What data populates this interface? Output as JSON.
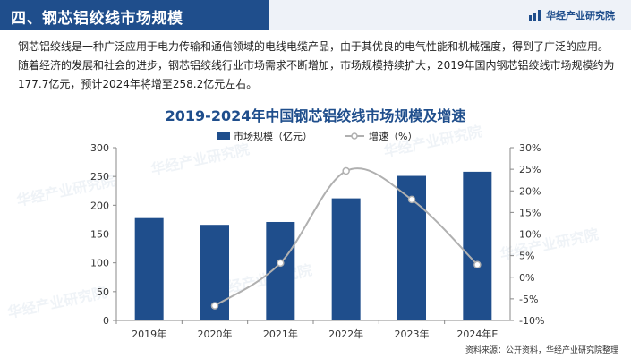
{
  "header": {
    "title": "四、钢芯铝绞线市场规模",
    "brand": "华经产业研究院"
  },
  "intro_text": "钢芯铝绞线是一种广泛应用于电力传输和通信领域的电线电缆产品，由于其优良的电气性能和机械强度，得到了广泛的应用。随着经济的发展和社会的进步，钢芯铝绞线行业市场需求不断增加，市场规模持续扩大，2019年国内钢芯铝绞线市场规模约为177.7亿元，预计2024年将增至258.2亿元左右。",
  "source": "资料来源：公开资料，华经产业研究院整理",
  "watermark": "华经产业研究院",
  "colors": {
    "bar": "#1f4e8c",
    "line": "#b0b0b0",
    "title": "#1f4e8c"
  },
  "chart_data": {
    "type": "bar",
    "title": "2019-2024年中国钢芯铝绞线市场规模及增速",
    "categories": [
      "2019年",
      "2020年",
      "2021年",
      "2022年",
      "2023年",
      "2024年E"
    ],
    "series": [
      {
        "name": "市场规模（亿元）",
        "type": "bar",
        "axis": "left",
        "values": [
          177.7,
          166,
          171,
          212,
          251,
          258.2
        ]
      },
      {
        "name": "增速（%）",
        "type": "line",
        "axis": "right",
        "smooth": true,
        "values": [
          null,
          -6.6,
          3.3,
          24.6,
          18.0,
          2.9
        ]
      }
    ],
    "ylim": [
      0,
      300
    ],
    "yticks": [
      "0",
      "50",
      "100",
      "150",
      "200",
      "250",
      "300"
    ],
    "y2lim": [
      -10,
      30
    ],
    "y2ticks": [
      "-10%",
      "-5%",
      "0%",
      "5%",
      "10%",
      "15%",
      "20%",
      "25%",
      "30%"
    ],
    "legend_position": "top-center",
    "grid": false
  }
}
